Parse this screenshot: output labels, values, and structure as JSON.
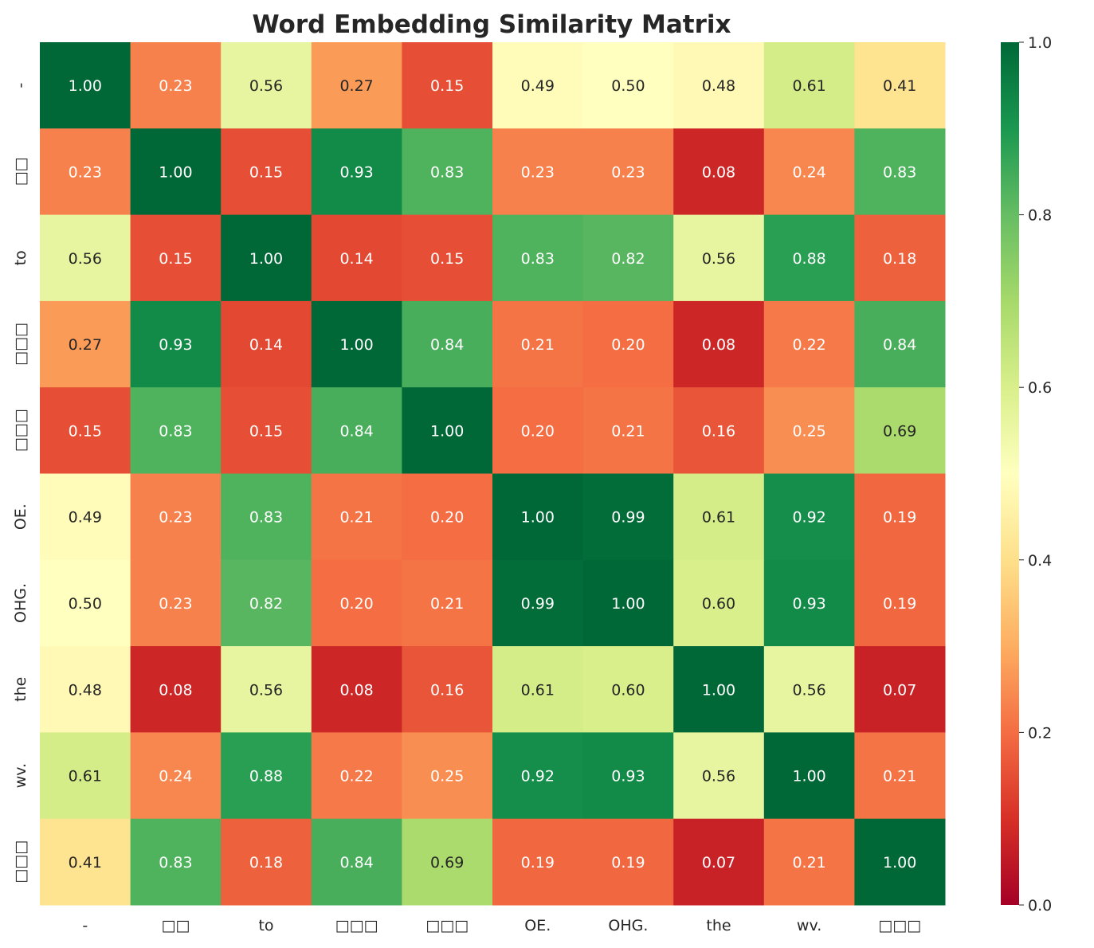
{
  "chart_data": {
    "type": "heatmap",
    "title": "Word Embedding Similarity Matrix",
    "x_labels": [
      "-",
      "□□",
      "to",
      "□□□",
      "□□□",
      "OE.",
      "OHG.",
      "the",
      "wv.",
      "□□□"
    ],
    "y_labels": [
      "-",
      "□□",
      "to",
      "□□□",
      "□□□",
      "OE.",
      "OHG.",
      "the",
      "wv.",
      "□□□"
    ],
    "values": [
      [
        1.0,
        0.23,
        0.56,
        0.27,
        0.15,
        0.49,
        0.5,
        0.48,
        0.61,
        0.41
      ],
      [
        0.23,
        1.0,
        0.15,
        0.93,
        0.83,
        0.23,
        0.23,
        0.08,
        0.24,
        0.83
      ],
      [
        0.56,
        0.15,
        1.0,
        0.14,
        0.15,
        0.83,
        0.82,
        0.56,
        0.88,
        0.18
      ],
      [
        0.27,
        0.93,
        0.14,
        1.0,
        0.84,
        0.21,
        0.2,
        0.08,
        0.22,
        0.84
      ],
      [
        0.15,
        0.83,
        0.15,
        0.84,
        1.0,
        0.2,
        0.21,
        0.16,
        0.25,
        0.69
      ],
      [
        0.49,
        0.23,
        0.83,
        0.21,
        0.2,
        1.0,
        0.99,
        0.61,
        0.92,
        0.19
      ],
      [
        0.5,
        0.23,
        0.82,
        0.2,
        0.21,
        0.99,
        1.0,
        0.6,
        0.93,
        0.19
      ],
      [
        0.48,
        0.08,
        0.56,
        0.08,
        0.16,
        0.61,
        0.6,
        1.0,
        0.56,
        0.07
      ],
      [
        0.61,
        0.24,
        0.88,
        0.22,
        0.25,
        0.92,
        0.93,
        0.56,
        1.0,
        0.21
      ],
      [
        0.41,
        0.83,
        0.18,
        0.84,
        0.69,
        0.19,
        0.19,
        0.07,
        0.21,
        1.0
      ]
    ],
    "colormap": "RdYlGn",
    "colormap_stops": [
      "#a50026",
      "#d73027",
      "#f46d43",
      "#fdae61",
      "#fee08b",
      "#ffffbf",
      "#d9ef8b",
      "#a6d96a",
      "#66bd63",
      "#1a9850",
      "#006837"
    ],
    "vmin": 0.0,
    "vmax": 1.0,
    "colorbar_ticks": [
      "0.0",
      "0.2",
      "0.4",
      "0.6",
      "0.8",
      "1.0"
    ],
    "annotation_format": "0.00"
  }
}
